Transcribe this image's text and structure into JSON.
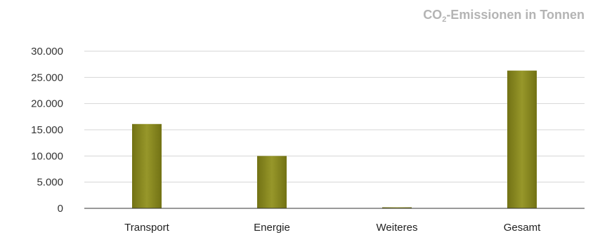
{
  "chart_data": {
    "type": "bar",
    "title_main": "CO",
    "title_sub": "2",
    "title_rest": "-Emissionen in Tonnen",
    "categories": [
      "Transport",
      "Energie",
      "Weiteres",
      "Gesamt"
    ],
    "values": [
      16100,
      10000,
      200,
      26300
    ],
    "ylim": [
      0,
      30000
    ],
    "y_ticks": [
      0,
      5000,
      10000,
      15000,
      20000,
      25000,
      30000
    ],
    "y_tick_labels": [
      "0",
      "5.000",
      "10.000",
      "15.000",
      "20.000",
      "25.000",
      "30.000"
    ],
    "grid": true,
    "bar_color": "#8e8e1e"
  }
}
